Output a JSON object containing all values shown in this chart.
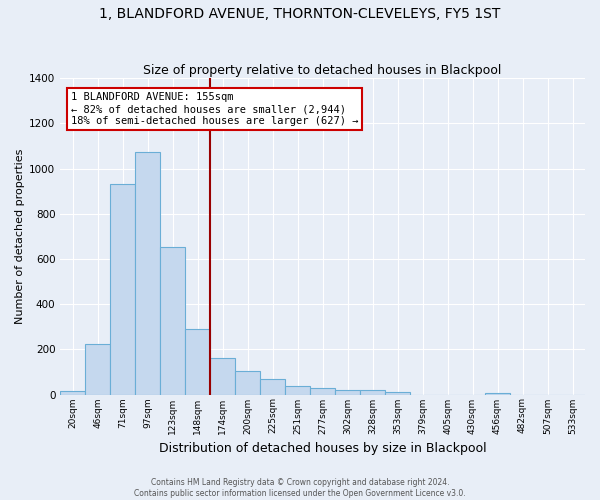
{
  "title1": "1, BLANDFORD AVENUE, THORNTON-CLEVELEYS, FY5 1ST",
  "title2": "Size of property relative to detached houses in Blackpool",
  "xlabel": "Distribution of detached houses by size in Blackpool",
  "ylabel": "Number of detached properties",
  "footer1": "Contains HM Land Registry data © Crown copyright and database right 2024.",
  "footer2": "Contains public sector information licensed under the Open Government Licence v3.0.",
  "bin_labels": [
    "20sqm",
    "46sqm",
    "71sqm",
    "97sqm",
    "123sqm",
    "148sqm",
    "174sqm",
    "200sqm",
    "225sqm",
    "251sqm",
    "277sqm",
    "302sqm",
    "328sqm",
    "353sqm",
    "379sqm",
    "405sqm",
    "430sqm",
    "456sqm",
    "482sqm",
    "507sqm",
    "533sqm"
  ],
  "bar_values": [
    15,
    225,
    930,
    1075,
    655,
    290,
    160,
    105,
    70,
    38,
    28,
    20,
    20,
    12,
    0,
    0,
    0,
    8,
    0,
    0,
    0
  ],
  "bar_color": "#c5d8ee",
  "bar_edge_color": "#6aaed6",
  "property_line_color": "#990000",
  "annotation_text": "1 BLANDFORD AVENUE: 155sqm\n← 82% of detached houses are smaller (2,944)\n18% of semi-detached houses are larger (627) →",
  "annotation_box_color": "#ffffff",
  "annotation_box_edge_color": "#cc0000",
  "ylim": [
    0,
    1400
  ],
  "yticks": [
    0,
    200,
    400,
    600,
    800,
    1000,
    1200,
    1400
  ],
  "background_color": "#e8eef7",
  "grid_color": "#ffffff",
  "title1_fontsize": 10,
  "title2_fontsize": 9,
  "xlabel_fontsize": 9,
  "ylabel_fontsize": 8,
  "annotation_fontsize": 7.5
}
